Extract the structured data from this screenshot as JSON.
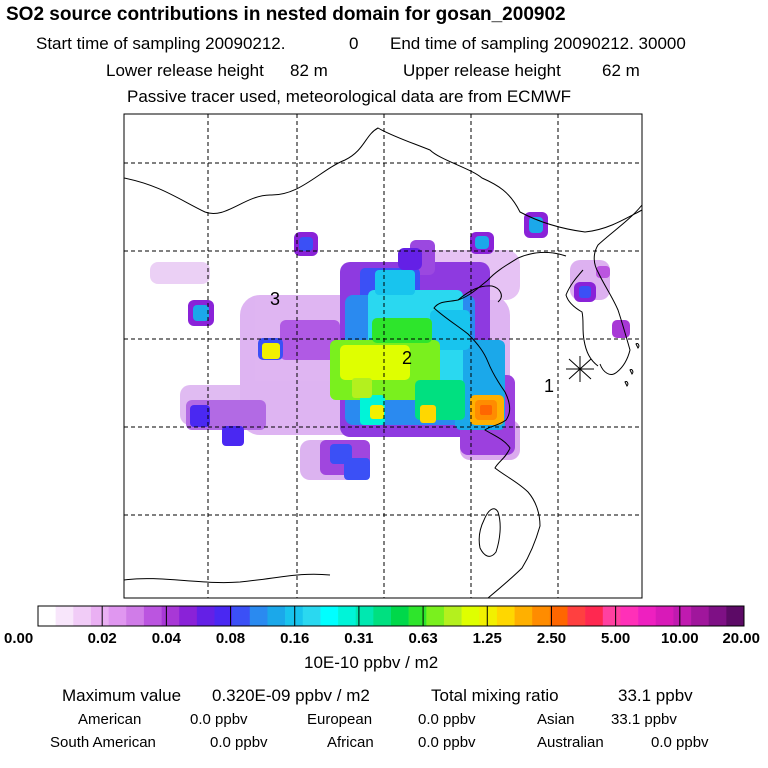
{
  "header": {
    "title": "SO2 source contributions in nested domain for gosan_200902",
    "start_label": "Start time of sampling 20090212.",
    "start_hour": "0",
    "end_label": "End time of sampling 20090212. 30000",
    "lower_label": "Lower release height",
    "lower_value": "82 m",
    "upper_label": "Upper release height",
    "upper_value": "62 m",
    "tracer_note": "Passive tracer used, meteorological data are from ECMWF"
  },
  "map": {
    "region_labels": [
      "1",
      "2",
      "3"
    ],
    "receptor": "gosan"
  },
  "chart_data": {
    "type": "heatmap",
    "title": "SO2 source contributions in nested domain for gosan_200902",
    "colorbar": {
      "unit_label": "10E-10 ppbv / m2",
      "tick_labels": [
        "0.00",
        "0.02",
        "0.04",
        "0.08",
        "0.16",
        "0.31",
        "0.63",
        "1.25",
        "2.50",
        "5.00",
        "10.00",
        "20.00"
      ],
      "boundaries": [
        0.0,
        0.02,
        0.04,
        0.08,
        0.16,
        0.31,
        0.63,
        1.25,
        2.5,
        5.0,
        10.0,
        20.0
      ],
      "colors": [
        "#ffffff",
        "#f8e6fb",
        "#f1ccf7",
        "#eab0f3",
        "#e097f0",
        "#d07ce8",
        "#bb55e0",
        "#a838d6",
        "#8a22d8",
        "#6420e6",
        "#4a28f2",
        "#3b50f6",
        "#2a8af0",
        "#1ba8ea",
        "#18c4ee",
        "#2ad8f0",
        "#00ffff",
        "#00f4d8",
        "#00e8b0",
        "#00e080",
        "#00d84a",
        "#2ee52c",
        "#7af01e",
        "#b4f01e",
        "#dfff00",
        "#f2f000",
        "#ffd700",
        "#ffb000",
        "#ff8c00",
        "#ff6600",
        "#ff4040",
        "#ff2850",
        "#ff40a0",
        "#ff30b8",
        "#ee20c0",
        "#d81ab8",
        "#c01ab0",
        "#a0169c",
        "#7e1085",
        "#5c0a66"
      ]
    },
    "stats": {
      "max_label": "Maximum value",
      "max_value": "0.320E-09 ppbv / m2",
      "total_label": "Total mixing ratio",
      "total_value": "33.1 ppbv",
      "regions": [
        {
          "name": "American",
          "value": "0.0 ppbv"
        },
        {
          "name": "European",
          "value": "0.0 ppbv"
        },
        {
          "name": "Asian",
          "value": "33.1 ppbv"
        },
        {
          "name": "South American",
          "value": "0.0 ppbv"
        },
        {
          "name": "African",
          "value": "0.0 ppbv"
        },
        {
          "name": "Australian",
          "value": "0.0 ppbv"
        }
      ]
    }
  }
}
